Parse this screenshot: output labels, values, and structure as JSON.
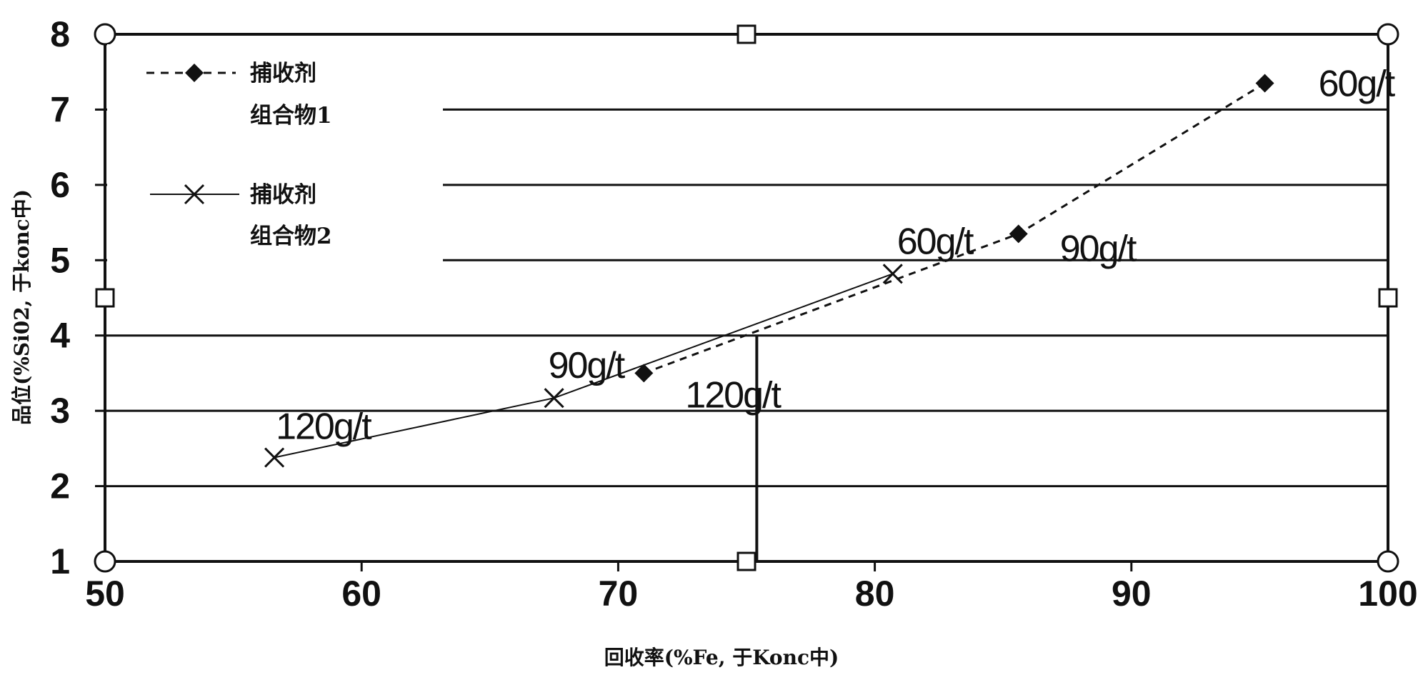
{
  "chart_data": {
    "type": "scatter",
    "xlabel": "回收率(%Fe, 于Konc中)",
    "ylabel": "品位(%Si02, 于konc中)",
    "xlim": [
      50,
      100
    ],
    "ylim": [
      1,
      8
    ],
    "x_ticks": [
      "50",
      "60",
      "70",
      "80",
      "90",
      "100"
    ],
    "y_ticks": [
      "1",
      "2",
      "3",
      "4",
      "5",
      "6",
      "7",
      "8"
    ],
    "grid": "horizontal",
    "legend_position": "top-left",
    "series": [
      {
        "name": "捕收剂\n组合物1",
        "legend_lines": [
          "捕收剂",
          "组合物1"
        ],
        "marker": "diamond",
        "line_style": "dashed",
        "points": [
          {
            "x": 95.2,
            "y": 7.35,
            "label": "60g/t"
          },
          {
            "x": 85.6,
            "y": 5.35,
            "label": "90g/t"
          },
          {
            "x": 71.0,
            "y": 3.5,
            "label": "120g/t"
          }
        ]
      },
      {
        "name": "捕收剂\n组合物2",
        "legend_lines": [
          "捕收剂",
          "组合物2"
        ],
        "marker": "x",
        "line_style": "solid",
        "points": [
          {
            "x": 80.7,
            "y": 4.82,
            "label": "60g/t"
          },
          {
            "x": 67.5,
            "y": 3.17,
            "label": "90g/t"
          },
          {
            "x": 56.6,
            "y": 2.38,
            "label": "120g/t"
          }
        ]
      }
    ],
    "extra_vertical_line": {
      "x": 75.4,
      "y_from": 1,
      "y_to": 4
    }
  }
}
